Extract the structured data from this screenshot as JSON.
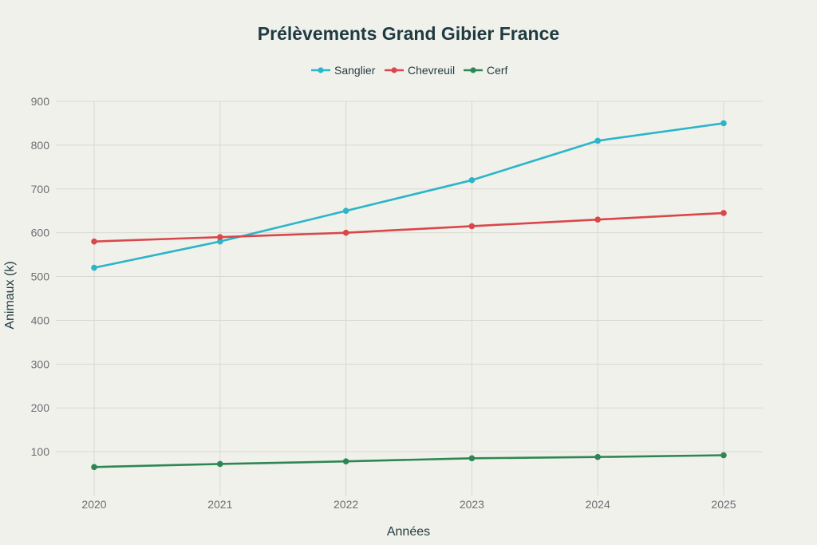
{
  "chart_data": {
    "type": "line",
    "title": "Prélèvements Grand Gibier France",
    "xlabel": "Années",
    "ylabel": "Animaux (k)",
    "categories": [
      "2020",
      "2021",
      "2022",
      "2023",
      "2024",
      "2025"
    ],
    "yticks": [
      "100",
      "200",
      "300",
      "400",
      "500",
      "600",
      "700",
      "800",
      "900"
    ],
    "ylim": [
      0,
      900
    ],
    "grid": true,
    "legend_position": "top-center",
    "series": [
      {
        "name": "Sanglier",
        "color": "#2bb5c9",
        "values": [
          520,
          580,
          650,
          720,
          810,
          850
        ]
      },
      {
        "name": "Chevreuil",
        "color": "#d9474a",
        "values": [
          580,
          590,
          600,
          615,
          630,
          645
        ]
      },
      {
        "name": "Cerf",
        "color": "#2e8753",
        "values": [
          65,
          72,
          78,
          85,
          88,
          92
        ]
      }
    ]
  }
}
